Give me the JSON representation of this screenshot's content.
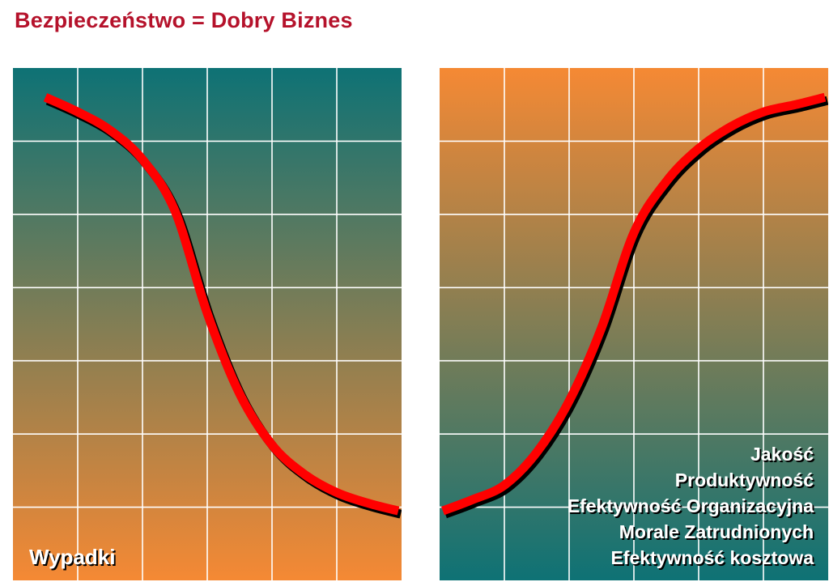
{
  "slide": {
    "title": "Bezpieczeństwo  =  Dobry Biznes"
  },
  "colors": {
    "title": "#b5122b",
    "teal": "#0e7275",
    "orange": "#f58934",
    "grid": "#ffffff",
    "curve": "#ff0000",
    "curve_shadow": "#000000",
    "label_text": "#ffffff",
    "label_shadow": "#000000"
  },
  "chart_data": [
    {
      "type": "line",
      "title": "",
      "xlabel": "",
      "ylabel": "",
      "xlim": [
        0,
        6
      ],
      "ylim": [
        0,
        7
      ],
      "grid": true,
      "background_gradient": "teal-top-to-orange-bottom",
      "labels": [
        "Wypadki"
      ],
      "label_placement": "bottom-left",
      "series": [
        {
          "x": [
            0.5,
            1.0,
            1.5,
            2.0,
            2.5,
            3.0,
            3.5,
            4.0,
            4.5,
            5.0,
            5.5,
            5.95
          ],
          "y": [
            6.6,
            6.4,
            6.15,
            5.75,
            5.05,
            3.65,
            2.55,
            1.85,
            1.45,
            1.2,
            1.05,
            0.95
          ]
        }
      ]
    },
    {
      "type": "line",
      "title": "",
      "xlabel": "",
      "ylabel": "",
      "xlim": [
        0,
        6
      ],
      "ylim": [
        0,
        7
      ],
      "grid": true,
      "background_gradient": "orange-top-to-teal-bottom",
      "labels": [
        "Jakość",
        "Produktywność",
        "Efektywność Organizacyjna",
        "Morale Zatrudnionych",
        "Efektywność kosztowa"
      ],
      "label_placement": "bottom-right",
      "series": [
        {
          "x": [
            0.05,
            0.5,
            1.0,
            1.5,
            2.0,
            2.5,
            3.0,
            3.5,
            4.0,
            4.5,
            5.0,
            5.5,
            5.95
          ],
          "y": [
            0.95,
            1.1,
            1.3,
            1.75,
            2.45,
            3.45,
            4.75,
            5.45,
            5.9,
            6.2,
            6.4,
            6.5,
            6.6
          ]
        }
      ]
    }
  ]
}
